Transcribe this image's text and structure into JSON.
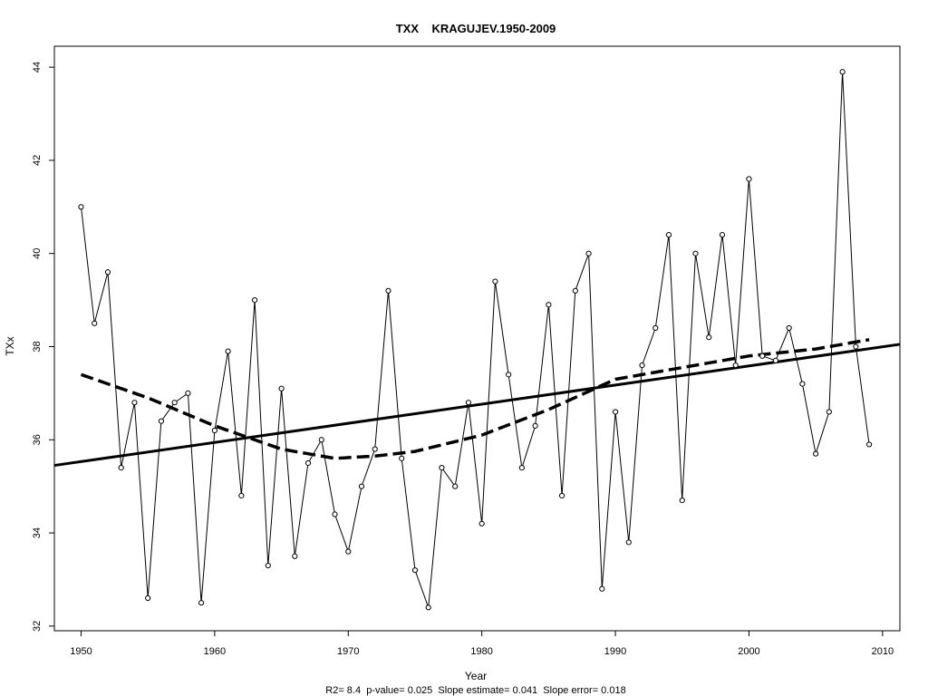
{
  "chart_data": {
    "type": "line",
    "title": "TXX    KRAGUJEV.1950-2009",
    "xlabel": "Year",
    "ylabel": "TXx",
    "footer": "R2= 8.4  p-value= 0.025  Slope estimate= 0.041  Slope error= 0.018",
    "xlim": [
      1948,
      2011.3
    ],
    "ylim": [
      31.9,
      44.45
    ],
    "xticks": [
      1950,
      1960,
      1970,
      1980,
      1990,
      2000,
      2010
    ],
    "yticks": [
      32,
      34,
      36,
      38,
      40,
      42,
      44
    ],
    "grid": false,
    "legend": "none",
    "series": [
      {
        "role": "observed",
        "style": "thin-line-with-circles",
        "color": "#000000",
        "x": [
          1950,
          1951,
          1952,
          1953,
          1954,
          1955,
          1956,
          1957,
          1958,
          1959,
          1960,
          1961,
          1962,
          1963,
          1964,
          1965,
          1966,
          1967,
          1968,
          1969,
          1970,
          1971,
          1972,
          1973,
          1974,
          1975,
          1976,
          1977,
          1978,
          1979,
          1980,
          1981,
          1982,
          1983,
          1984,
          1985,
          1986,
          1987,
          1988,
          1989,
          1990,
          1991,
          1992,
          1993,
          1994,
          1995,
          1996,
          1997,
          1998,
          1999,
          2000,
          2001,
          2002,
          2003,
          2004,
          2005,
          2006,
          2007,
          2008,
          2009
        ],
        "y": [
          41.0,
          38.5,
          39.6,
          35.4,
          36.8,
          32.6,
          36.4,
          36.8,
          37.0,
          32.5,
          36.2,
          37.9,
          34.8,
          39.0,
          33.3,
          37.1,
          33.5,
          35.5,
          36.0,
          34.4,
          33.6,
          35.0,
          35.8,
          39.2,
          35.6,
          33.2,
          32.4,
          35.4,
          35.0,
          36.8,
          34.2,
          39.4,
          37.4,
          35.4,
          36.3,
          38.9,
          34.8,
          39.2,
          40.0,
          32.8,
          36.6,
          33.8,
          37.6,
          38.4,
          40.4,
          34.7,
          40.0,
          38.2,
          40.4,
          37.6,
          41.6,
          37.8,
          37.7,
          38.4,
          37.2,
          35.7,
          36.6,
          43.9,
          38.0,
          35.9
        ]
      },
      {
        "role": "linear-trend",
        "style": "thick-solid",
        "color": "#000000",
        "x": [
          1948,
          2011.3
        ],
        "y": [
          35.45,
          38.05
        ]
      },
      {
        "role": "smoothed",
        "style": "thick-dashed",
        "color": "#000000",
        "x": [
          1950,
          1955,
          1960,
          1965,
          1969,
          1972,
          1975,
          1980,
          1985,
          1990,
          1995,
          2000,
          2005,
          2009
        ],
        "y": [
          37.4,
          36.9,
          36.3,
          35.8,
          35.6,
          35.65,
          35.75,
          36.1,
          36.65,
          37.3,
          37.55,
          37.8,
          37.95,
          38.15
        ]
      }
    ]
  }
}
